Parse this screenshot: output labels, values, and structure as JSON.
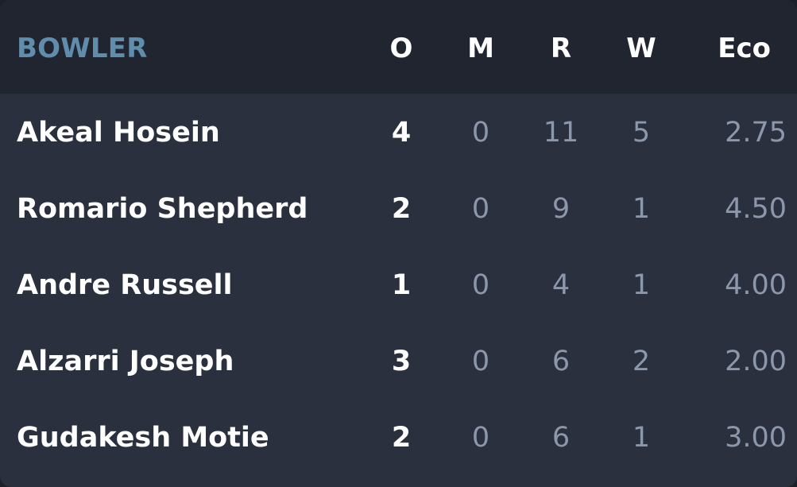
{
  "header": {
    "bowler": "BOWLER",
    "overs": "O",
    "maidens": "M",
    "runs": "R",
    "wickets": "W",
    "economy": "Eco"
  },
  "rows": [
    {
      "name": "Akeal Hosein",
      "o": "4",
      "m": "0",
      "r": "11",
      "w": "5",
      "eco": "2.75"
    },
    {
      "name": "Romario Shepherd",
      "o": "2",
      "m": "0",
      "r": "9",
      "w": "1",
      "eco": "4.50"
    },
    {
      "name": "Andre Russell",
      "o": "1",
      "m": "0",
      "r": "4",
      "w": "1",
      "eco": "4.00"
    },
    {
      "name": "Alzarri Joseph",
      "o": "3",
      "m": "0",
      "r": "6",
      "w": "2",
      "eco": "2.00"
    },
    {
      "name": "Gudakesh Motie",
      "o": "2",
      "m": "0",
      "r": "6",
      "w": "1",
      "eco": "3.00"
    }
  ],
  "colors": {
    "header_bg": "#20252f",
    "body_bg": "#2a303d",
    "bowler_header": "#5f8dab",
    "primary_text": "#ffffff",
    "muted_text": "#8c97ab"
  }
}
